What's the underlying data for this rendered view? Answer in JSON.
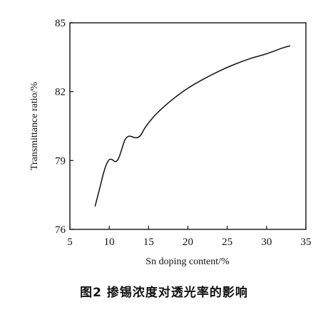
{
  "caption": "图2 掺锡浓度对透光率的影响",
  "chart_data": {
    "type": "line",
    "title": "",
    "xlabel": "Sn doping content/%",
    "ylabel": "Transmittance ratio/%",
    "xlim": [
      5,
      35
    ],
    "ylim": [
      76,
      85
    ],
    "x_ticks": [
      5,
      10,
      15,
      20,
      25,
      30,
      35
    ],
    "y_ticks": [
      76,
      79,
      82,
      85
    ],
    "grid": false,
    "series": [
      {
        "name": "",
        "x": [
          8.2,
          8.8,
          9.4,
          9.9,
          10.3,
          10.8,
          11.2,
          11.6,
          12.0,
          12.4,
          12.8,
          13.2,
          13.6,
          14.0,
          14.6,
          15.5,
          16.5,
          18.0,
          20.0,
          22.0,
          24.0,
          26.0,
          28.0,
          30.0,
          32.0,
          33.0
        ],
        "y": [
          77.0,
          77.8,
          78.6,
          79.0,
          79.05,
          78.95,
          79.1,
          79.5,
          79.9,
          80.05,
          80.05,
          80.0,
          80.0,
          80.1,
          80.45,
          80.85,
          81.2,
          81.65,
          82.15,
          82.55,
          82.9,
          83.2,
          83.45,
          83.65,
          83.9,
          84.0
        ]
      }
    ]
  }
}
